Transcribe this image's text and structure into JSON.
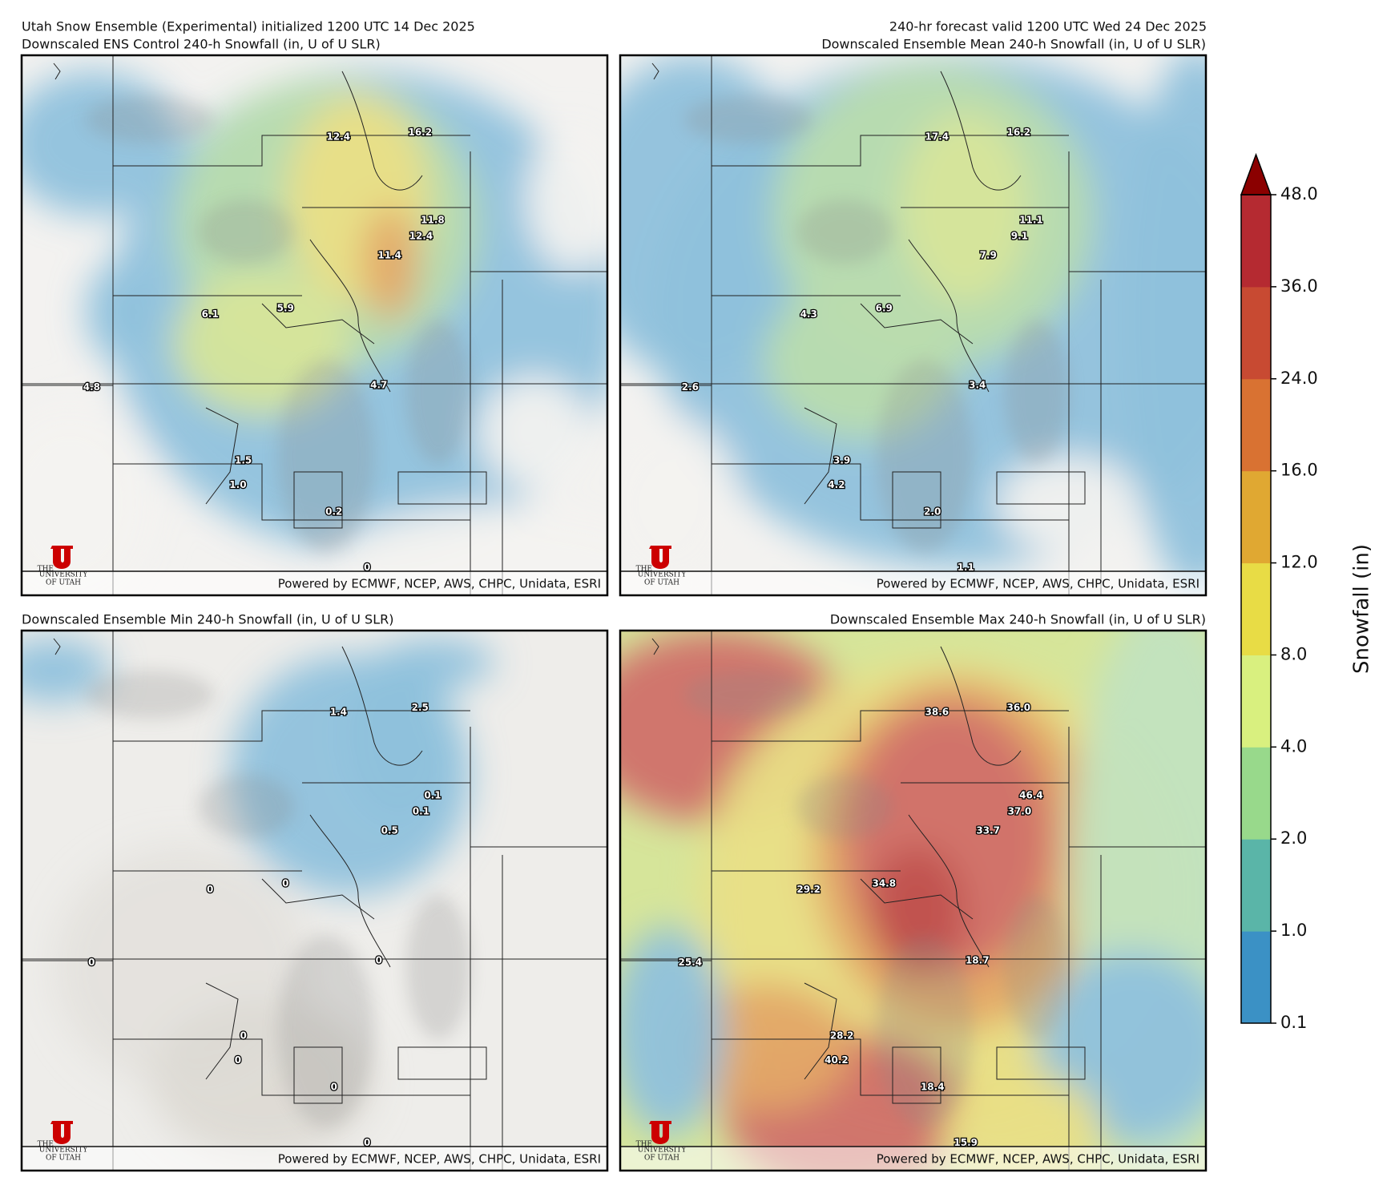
{
  "header": {
    "left": "Utah Snow Ensemble (Experimental) initialized 1200 UTC 14 Dec 2025",
    "right": "240-hr forecast valid 1200 UTC Wed 24 Dec 2025"
  },
  "panels": [
    {
      "title": "Downscaled ENS Control 240-h Snowfall (in, U of U SLR)",
      "labels": [
        "12.4",
        "16.2",
        "11.8",
        "12.4",
        "11.4",
        "6.1",
        "5.9",
        "4.8",
        "4.7",
        "1.5",
        "1.0",
        "0.2",
        "0"
      ],
      "credit": "Powered by ECMWF, NCEP, AWS, CHPC, Unidata, ESRI",
      "logo": [
        "THE",
        "UNIVERSITY",
        "OF UTAH"
      ]
    },
    {
      "title": "Downscaled Ensemble Mean 240-h Snowfall (in, U of U SLR)",
      "labels": [
        "17.4",
        "16.2",
        "11.1",
        "9.1",
        "7.9",
        "4.3",
        "6.9",
        "2.6",
        "3.4",
        "3.9",
        "4.2",
        "2.0",
        "1.1"
      ],
      "credit": "Powered by ECMWF, NCEP, AWS, CHPC, Unidata, ESRI",
      "logo": [
        "THE",
        "UNIVERSITY",
        "OF UTAH"
      ]
    },
    {
      "title": "Downscaled Ensemble Min 240-h Snowfall (in, U of U SLR)",
      "labels": [
        "1.4",
        "2.5",
        "0.1",
        "0.1",
        "0.5",
        "0",
        "0",
        "0",
        "0",
        "0",
        "0",
        "0",
        "0"
      ],
      "credit": "Powered by ECMWF, NCEP, AWS, CHPC, Unidata, ESRI",
      "logo": [
        "THE",
        "UNIVERSITY",
        "OF UTAH"
      ]
    },
    {
      "title": "Downscaled Ensemble Max 240-h Snowfall (in, U of U SLR)",
      "labels": [
        "38.6",
        "36.0",
        "46.4",
        "37.0",
        "33.7",
        "29.2",
        "34.8",
        "25.4",
        "18.7",
        "28.2",
        "40.2",
        "18.4",
        "15.9"
      ],
      "credit": "Powered by ECMWF, NCEP, AWS, CHPC, Unidata, ESRI",
      "logo": [
        "THE",
        "UNIVERSITY",
        "OF UTAH"
      ]
    }
  ],
  "colorbar": {
    "label": "Snowfall (in)",
    "ticks": [
      "0.1",
      "1.0",
      "2.0",
      "4.0",
      "8.0",
      "12.0",
      "16.0",
      "24.0",
      "36.0",
      "48.0"
    ],
    "colors": [
      "#3b91c5",
      "#5ab5a8",
      "#98d98b",
      "#d9f07f",
      "#e8dc45",
      "#e0a832",
      "#d97232",
      "#c84a32",
      "#b52a31"
    ],
    "extend_color": "#8b0000"
  }
}
